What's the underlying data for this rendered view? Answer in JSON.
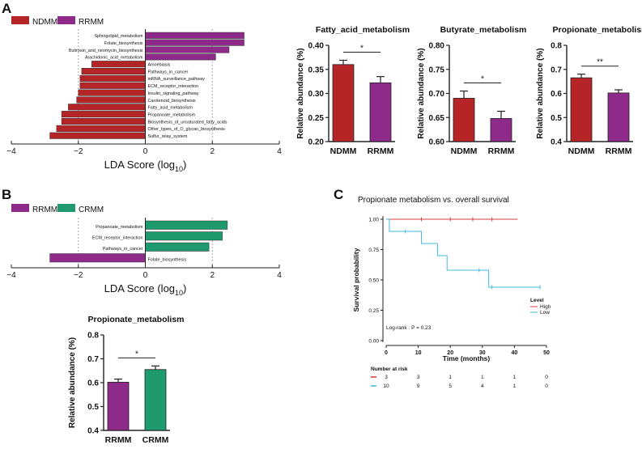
{
  "colors": {
    "ndmm": "#b52528",
    "rrmm": "#8e2b8a",
    "crmm": "#1e9a6e",
    "high": "#d9413b",
    "low": "#43b7e0",
    "axis": "#222222",
    "grid": "#aaaaaa"
  },
  "panel_labels": [
    "A",
    "B",
    "C"
  ],
  "chart_data": [
    {
      "id": "lda_a",
      "type": "bar",
      "orientation": "horizontal",
      "legend": [
        "NDMM",
        "RRMM"
      ],
      "xlabel": "LDA Score (log",
      "xlabel_sub": "10",
      "xlabel_end": ")",
      "xlim": [
        -4,
        4
      ],
      "xticks": [
        "−4",
        "−2",
        "0",
        "2",
        "4"
      ],
      "bars": [
        {
          "label": "Sphingolipid_metabolism",
          "value": 2.95,
          "group": 1
        },
        {
          "label": "Folate_biosynthesis",
          "value": 2.95,
          "group": 1
        },
        {
          "label": "Butirosin_and_neomycin_biosynthesis",
          "value": 2.5,
          "group": 1
        },
        {
          "label": "Arachidonic_acid_metabolism",
          "value": 2.1,
          "group": 1
        },
        {
          "label": "Amoebiasis",
          "value": -1.6,
          "group": 0
        },
        {
          "label": "Pathways_in_cancer",
          "value": -1.9,
          "group": 0
        },
        {
          "label": "mRNA_surveillance_pathway",
          "value": -1.95,
          "group": 0
        },
        {
          "label": "ECM_receptor_interaction",
          "value": -1.95,
          "group": 0
        },
        {
          "label": "Insulin_signaling_pathway",
          "value": -2.0,
          "group": 0
        },
        {
          "label": "Carotenoid_biosynthesis",
          "value": -2.05,
          "group": 0
        },
        {
          "label": "Fatty_acid_metabolism",
          "value": -2.3,
          "group": 0
        },
        {
          "label": "Propanoate_metabolism",
          "value": -2.5,
          "group": 0
        },
        {
          "label": "Biosynthesis_of_unsaturated_fatty_acids",
          "value": -2.5,
          "group": 0
        },
        {
          "label": "Other_types_of_O_glycan_biosynthesis",
          "value": -2.65,
          "group": 0
        },
        {
          "label": "Sulfur_relay_system",
          "value": -2.85,
          "group": 0
        }
      ]
    },
    {
      "id": "fatty",
      "type": "bar",
      "title": "Fatty_acid_metabolism",
      "ylabel": "Relative abundance (%)",
      "ylim": [
        0.2,
        0.4
      ],
      "yticks": [
        "0.20",
        "0.25",
        "0.30",
        "0.35",
        "0.40"
      ],
      "categories": [
        "NDMM",
        "RRMM"
      ],
      "values": [
        0.36,
        0.322
      ],
      "errors": [
        0.009,
        0.013
      ],
      "significance": "*"
    },
    {
      "id": "butyrate",
      "type": "bar",
      "title": "Butyrate_metabolism",
      "ylabel": "Relative abundance (%)",
      "ylim": [
        0.6,
        0.8
      ],
      "yticks": [
        "0.60",
        "0.65",
        "0.70",
        "0.75",
        "0.80"
      ],
      "categories": [
        "NDMM",
        "RRMM"
      ],
      "values": [
        0.69,
        0.648
      ],
      "errors": [
        0.015,
        0.015
      ],
      "significance": "*"
    },
    {
      "id": "propionate_a",
      "type": "bar",
      "title": "Propionate_metabolism",
      "ylabel": "Relative abundance (%)",
      "ylim": [
        0.4,
        0.8
      ],
      "yticks": [
        "0.4",
        "0.5",
        "0.6",
        "0.7",
        "0.8"
      ],
      "categories": [
        "NDMM",
        "RRMM"
      ],
      "values": [
        0.665,
        0.602
      ],
      "errors": [
        0.015,
        0.013
      ],
      "significance": "**"
    },
    {
      "id": "lda_b",
      "type": "bar",
      "orientation": "horizontal",
      "legend": [
        "RRMM",
        "CRMM"
      ],
      "xlabel": "LDA Score (log",
      "xlabel_sub": "10",
      "xlabel_end": ")",
      "xlim": [
        -4,
        4
      ],
      "xticks": [
        "−4",
        "−2",
        "0",
        "2",
        "4"
      ],
      "bars": [
        {
          "label": "Propanoate_metabolism",
          "value": 2.45,
          "group": 1
        },
        {
          "label": "ECM_receptor_interaction",
          "value": 2.3,
          "group": 1
        },
        {
          "label": "Pathways_in_cancer",
          "value": 1.9,
          "group": 1
        },
        {
          "label": "Folate_biosynthesis",
          "value": -2.85,
          "group": 0
        }
      ]
    },
    {
      "id": "propionate_b",
      "type": "bar",
      "title": "Propionate_metabolism",
      "ylabel": "Relative abundance (%)",
      "ylim": [
        0.4,
        0.8
      ],
      "yticks": [
        "0.4",
        "0.5",
        "0.6",
        "0.7",
        "0.8"
      ],
      "categories": [
        "RRMM",
        "CRMM"
      ],
      "values": [
        0.602,
        0.655
      ],
      "errors": [
        0.013,
        0.015
      ],
      "significance": "*"
    },
    {
      "id": "km",
      "type": "line",
      "title": "Propionate metabolism vs. overall survival",
      "xlabel": "Time (months)",
      "ylabel": "Survival probability",
      "xlim": [
        0,
        50
      ],
      "ylim": [
        0,
        1
      ],
      "xticks": [
        "0",
        "10",
        "20",
        "30",
        "40",
        "50"
      ],
      "yticks": [
        "0.00",
        "0.25",
        "0.50",
        "0.75",
        "1.00"
      ],
      "legend_title": "Level",
      "annotation": "Log-rank : P = 0.23",
      "series": [
        {
          "name": "High",
          "points": [
            [
              0,
              1.0
            ],
            [
              41,
              1.0
            ]
          ],
          "censor": [
            [
              11,
              1.0
            ],
            [
              20,
              1.0
            ],
            [
              27,
              1.0
            ],
            [
              33,
              1.0
            ]
          ]
        },
        {
          "name": "Low",
          "points": [
            [
              0,
              1.0
            ],
            [
              1,
              1.0
            ],
            [
              1,
              0.9
            ],
            [
              11,
              0.9
            ],
            [
              11,
              0.8
            ],
            [
              16,
              0.8
            ],
            [
              16,
              0.7
            ],
            [
              19,
              0.7
            ],
            [
              19,
              0.58
            ],
            [
              32,
              0.58
            ],
            [
              32,
              0.44
            ],
            [
              48,
              0.44
            ]
          ],
          "censor": [
            [
              6,
              0.9
            ],
            [
              29,
              0.58
            ],
            [
              33,
              0.44
            ],
            [
              48,
              0.44
            ]
          ]
        }
      ],
      "risk_table": {
        "title": "Number at risk",
        "times": [
          0,
          10,
          20,
          30,
          40,
          50
        ],
        "rows": [
          {
            "name": "High",
            "values": [
              "3",
              "3",
              "1",
              "1",
              "1",
              "0"
            ]
          },
          {
            "name": "Low",
            "values": [
              "10",
              "9",
              "5",
              "4",
              "1",
              "0"
            ]
          }
        ]
      }
    }
  ]
}
